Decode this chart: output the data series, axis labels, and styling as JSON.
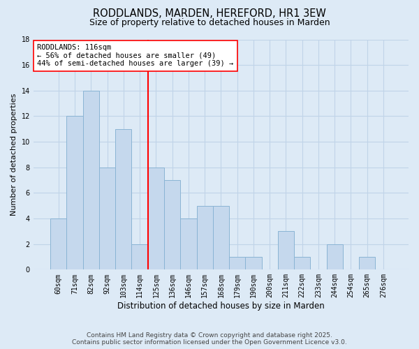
{
  "title": "RODDLANDS, MARDEN, HEREFORD, HR1 3EW",
  "subtitle": "Size of property relative to detached houses in Marden",
  "xlabel": "Distribution of detached houses by size in Marden",
  "ylabel": "Number of detached properties",
  "bin_labels": [
    "60sqm",
    "71sqm",
    "82sqm",
    "92sqm",
    "103sqm",
    "114sqm",
    "125sqm",
    "136sqm",
    "146sqm",
    "157sqm",
    "168sqm",
    "179sqm",
    "190sqm",
    "200sqm",
    "211sqm",
    "222sqm",
    "233sqm",
    "244sqm",
    "254sqm",
    "265sqm",
    "276sqm"
  ],
  "bar_values": [
    4,
    12,
    14,
    8,
    11,
    2,
    8,
    7,
    4,
    5,
    5,
    1,
    1,
    0,
    3,
    1,
    0,
    2,
    0,
    1,
    0
  ],
  "bar_color": "#c5d8ed",
  "bar_edge_color": "#8ab4d4",
  "grid_color": "#c0d4e8",
  "background_color": "#ddeaf6",
  "vline_x": 5.5,
  "vline_color": "red",
  "annotation_title": "RODDLANDS: 116sqm",
  "annotation_line1": "← 56% of detached houses are smaller (49)",
  "annotation_line2": "44% of semi-detached houses are larger (39) →",
  "annotation_box_color": "white",
  "annotation_box_edge": "red",
  "ylim": [
    0,
    18
  ],
  "yticks": [
    0,
    2,
    4,
    6,
    8,
    10,
    12,
    14,
    16,
    18
  ],
  "footer_line1": "Contains HM Land Registry data © Crown copyright and database right 2025.",
  "footer_line2": "Contains public sector information licensed under the Open Government Licence v3.0.",
  "title_fontsize": 10.5,
  "subtitle_fontsize": 9,
  "xlabel_fontsize": 8.5,
  "ylabel_fontsize": 8,
  "tick_fontsize": 7,
  "footer_fontsize": 6.5,
  "annotation_fontsize": 7.5
}
